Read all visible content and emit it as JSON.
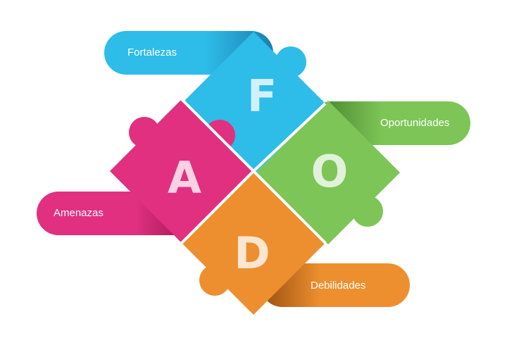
{
  "diagram": {
    "pieces": [
      {
        "key": "F",
        "letter": "F",
        "label": "Fortalezas",
        "color": "#2ebce8",
        "dark": "#1a7fb0"
      },
      {
        "key": "O",
        "letter": "O",
        "label": "Oportunidades",
        "color": "#7dc556",
        "dark": "#3f7a2a"
      },
      {
        "key": "D",
        "letter": "D",
        "label": "Debilidades",
        "color": "#ed8f2f",
        "dark": "#9a4e10"
      },
      {
        "key": "A",
        "letter": "A",
        "label": "Amenazas",
        "color": "#e0307f",
        "dark": "#8e1148"
      }
    ]
  }
}
